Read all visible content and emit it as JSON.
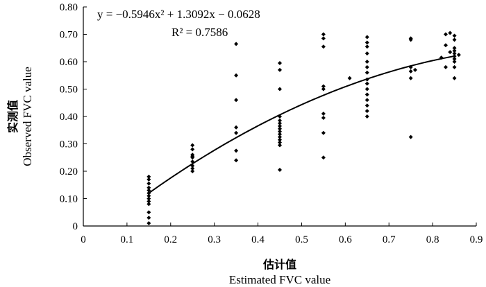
{
  "chart_data": {
    "type": "scatter",
    "title": "",
    "xlabel": "Estimated FVC value",
    "xlabel_zh": "估计值",
    "ylabel": "Observed FVC value",
    "ylabel_zh": "实测值",
    "xlim": [
      0,
      0.9
    ],
    "ylim": [
      0,
      0.8
    ],
    "xticks": [
      "0",
      "0.1",
      "0.2",
      "0.3",
      "0.4",
      "0.5",
      "0.6",
      "0.7",
      "0.8",
      "0.9"
    ],
    "yticks": [
      "0",
      "0.10",
      "0.20",
      "0.30",
      "0.40",
      "0.50",
      "0.60",
      "0.70",
      "0.80"
    ],
    "grid": false,
    "equation": {
      "line1": "y = −0.5946x² + 1.3092x − 0.0628",
      "line2": "R² = 0.7586",
      "r2": 0.7586,
      "coefficients": {
        "a": -0.5946,
        "b": 1.3092,
        "c": -0.0628
      },
      "fit_x_range": [
        0.15,
        0.85
      ]
    },
    "marker_color": "#000000",
    "points": [
      [
        0.15,
        0.18
      ],
      [
        0.15,
        0.17
      ],
      [
        0.15,
        0.155
      ],
      [
        0.15,
        0.14
      ],
      [
        0.15,
        0.13
      ],
      [
        0.15,
        0.12
      ],
      [
        0.15,
        0.11
      ],
      [
        0.15,
        0.1
      ],
      [
        0.15,
        0.09
      ],
      [
        0.15,
        0.08
      ],
      [
        0.15,
        0.05
      ],
      [
        0.15,
        0.03
      ],
      [
        0.15,
        0.01
      ],
      [
        0.25,
        0.295
      ],
      [
        0.25,
        0.28
      ],
      [
        0.25,
        0.26
      ],
      [
        0.25,
        0.255
      ],
      [
        0.25,
        0.25
      ],
      [
        0.25,
        0.235
      ],
      [
        0.25,
        0.22
      ],
      [
        0.25,
        0.21
      ],
      [
        0.25,
        0.2
      ],
      [
        0.35,
        0.665
      ],
      [
        0.35,
        0.55
      ],
      [
        0.35,
        0.46
      ],
      [
        0.35,
        0.36
      ],
      [
        0.35,
        0.34
      ],
      [
        0.35,
        0.275
      ],
      [
        0.35,
        0.24
      ],
      [
        0.45,
        0.595
      ],
      [
        0.45,
        0.57
      ],
      [
        0.45,
        0.5
      ],
      [
        0.45,
        0.4
      ],
      [
        0.45,
        0.385
      ],
      [
        0.45,
        0.375
      ],
      [
        0.45,
        0.365
      ],
      [
        0.45,
        0.355
      ],
      [
        0.45,
        0.345
      ],
      [
        0.45,
        0.335
      ],
      [
        0.45,
        0.325
      ],
      [
        0.45,
        0.315
      ],
      [
        0.45,
        0.305
      ],
      [
        0.45,
        0.295
      ],
      [
        0.45,
        0.205
      ],
      [
        0.55,
        0.7
      ],
      [
        0.55,
        0.685
      ],
      [
        0.55,
        0.655
      ],
      [
        0.55,
        0.51
      ],
      [
        0.55,
        0.5
      ],
      [
        0.55,
        0.41
      ],
      [
        0.55,
        0.395
      ],
      [
        0.55,
        0.34
      ],
      [
        0.55,
        0.25
      ],
      [
        0.61,
        0.54
      ],
      [
        0.65,
        0.69
      ],
      [
        0.65,
        0.67
      ],
      [
        0.65,
        0.655
      ],
      [
        0.65,
        0.63
      ],
      [
        0.65,
        0.6
      ],
      [
        0.65,
        0.58
      ],
      [
        0.65,
        0.56
      ],
      [
        0.65,
        0.535
      ],
      [
        0.65,
        0.52
      ],
      [
        0.65,
        0.5
      ],
      [
        0.65,
        0.48
      ],
      [
        0.65,
        0.46
      ],
      [
        0.65,
        0.44
      ],
      [
        0.65,
        0.42
      ],
      [
        0.65,
        0.4
      ],
      [
        0.75,
        0.685
      ],
      [
        0.75,
        0.68
      ],
      [
        0.75,
        0.58
      ],
      [
        0.75,
        0.565
      ],
      [
        0.75,
        0.54
      ],
      [
        0.75,
        0.325
      ],
      [
        0.76,
        0.57
      ],
      [
        0.82,
        0.615
      ],
      [
        0.83,
        0.7
      ],
      [
        0.83,
        0.66
      ],
      [
        0.83,
        0.58
      ],
      [
        0.84,
        0.705
      ],
      [
        0.84,
        0.635
      ],
      [
        0.85,
        0.695
      ],
      [
        0.85,
        0.68
      ],
      [
        0.85,
        0.65
      ],
      [
        0.85,
        0.64
      ],
      [
        0.85,
        0.63
      ],
      [
        0.85,
        0.62
      ],
      [
        0.85,
        0.61
      ],
      [
        0.85,
        0.6
      ],
      [
        0.85,
        0.58
      ],
      [
        0.85,
        0.54
      ],
      [
        0.86,
        0.625
      ]
    ]
  }
}
